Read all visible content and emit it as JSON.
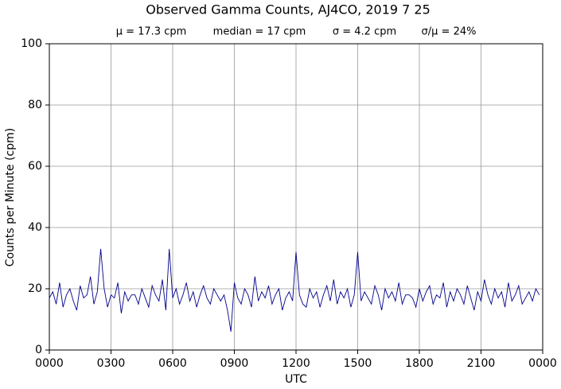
{
  "chart_data": {
    "type": "line",
    "title": "Observed Gamma Counts, AJ4CO, 2019 7 25",
    "subtitle": [
      "μ = 17.3 cpm",
      "median = 17 cpm",
      "σ = 4.2 cpm",
      "σ/μ = 24%"
    ],
    "xlabel": "UTC",
    "ylabel": "Counts per Minute (cpm)",
    "x": [
      0,
      10,
      20,
      30,
      40,
      50,
      60,
      70,
      80,
      90,
      100,
      110,
      120,
      130,
      140,
      150,
      160,
      170,
      180,
      190,
      200,
      210,
      220,
      230,
      240,
      250,
      260,
      270,
      280,
      290,
      300,
      310,
      320,
      330,
      340,
      350,
      360,
      370,
      380,
      390,
      400,
      410,
      420,
      430,
      440,
      450,
      460,
      470,
      480,
      490,
      500,
      510,
      520,
      530,
      540,
      550,
      560,
      570,
      580,
      590,
      600,
      610,
      620,
      630,
      640,
      650,
      660,
      670,
      680,
      690,
      700,
      710,
      720,
      730,
      740,
      750,
      760,
      770,
      780,
      790,
      800,
      810,
      820,
      830,
      840,
      850,
      860,
      870,
      880,
      890,
      900,
      910,
      920,
      930,
      940,
      950,
      960,
      970,
      980,
      990,
      1000,
      1010,
      1020,
      1030,
      1040,
      1050,
      1060,
      1070,
      1080,
      1090,
      1100,
      1110,
      1120,
      1130,
      1140,
      1150,
      1160,
      1170,
      1180,
      1190,
      1200,
      1210,
      1220,
      1230,
      1240,
      1250,
      1260,
      1270,
      1280,
      1290,
      1300,
      1310,
      1320,
      1330,
      1340,
      1350,
      1360,
      1370,
      1380,
      1390,
      1400,
      1410,
      1420,
      1430
    ],
    "series": [
      {
        "name": "Counts",
        "color": "#00008b",
        "values": [
          17,
          19,
          15,
          22,
          14,
          18,
          20,
          16,
          13,
          21,
          17,
          18,
          24,
          15,
          19,
          33,
          20,
          14,
          18,
          17,
          22,
          12,
          19,
          16,
          18,
          18,
          15,
          20,
          17,
          14,
          21,
          18,
          16,
          23,
          13,
          33,
          17,
          20,
          15,
          18,
          22,
          16,
          19,
          14,
          18,
          21,
          17,
          15,
          20,
          18,
          16,
          18,
          13,
          6,
          22,
          17,
          15,
          20,
          18,
          14,
          24,
          16,
          19,
          17,
          21,
          15,
          18,
          20,
          13,
          17,
          19,
          16,
          32,
          18,
          15,
          14,
          20,
          17,
          19,
          14,
          18,
          21,
          16,
          23,
          15,
          19,
          17,
          20,
          14,
          18,
          32,
          16,
          19,
          17,
          15,
          21,
          18,
          13,
          20,
          17,
          19,
          16,
          22,
          15,
          18,
          18,
          17,
          14,
          20,
          16,
          19,
          21,
          15,
          18,
          17,
          22,
          14,
          19,
          16,
          20,
          18,
          15,
          21,
          17,
          13,
          19,
          16,
          23,
          18,
          15,
          20,
          17,
          19,
          14,
          22,
          16,
          18,
          21,
          15,
          17,
          19,
          16,
          20,
          18
        ]
      }
    ],
    "xlim": [
      0,
      1440
    ],
    "xticks": [
      {
        "value": 0,
        "label": "0000"
      },
      {
        "value": 180,
        "label": "0300"
      },
      {
        "value": 360,
        "label": "0600"
      },
      {
        "value": 540,
        "label": "0900"
      },
      {
        "value": 720,
        "label": "1200"
      },
      {
        "value": 900,
        "label": "1500"
      },
      {
        "value": 1080,
        "label": "1800"
      },
      {
        "value": 1260,
        "label": "2100"
      },
      {
        "value": 1440,
        "label": "0000"
      }
    ],
    "ylim": [
      0,
      100
    ],
    "yticks": [
      0,
      20,
      40,
      60,
      80,
      100
    ],
    "grid": true
  }
}
